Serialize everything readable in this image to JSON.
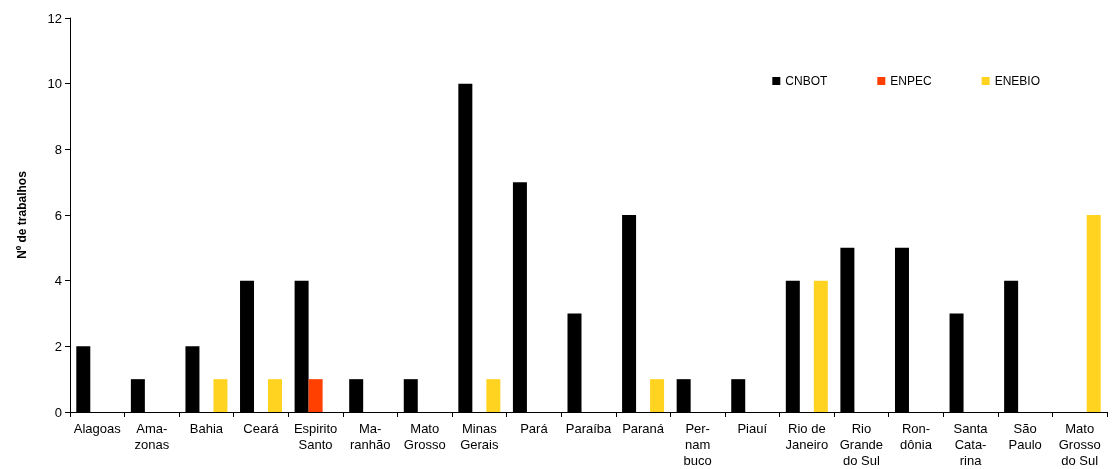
{
  "chart_data": {
    "type": "bar",
    "ylabel": "Nº de trabalhos",
    "categories": [
      "Alagoas",
      "Ama-\nzonas",
      "Bahia",
      "Ceará",
      "Espirito\nSanto",
      "Ma-\nranhão",
      "Mato\nGrosso",
      "Minas\nGerais",
      "Pará",
      "Paraíba",
      "Paraná",
      "Per-\nnam\nbuco",
      "Piauí",
      "Rio de\nJaneiro",
      "Rio\nGrande\ndo Sul",
      "Ron-\ndônia",
      "Santa\nCata-\nrina",
      "São\nPaulo",
      "Mato\nGrosso\ndo Sul"
    ],
    "series": [
      {
        "name": "CNBOT",
        "color": "#000000",
        "values": [
          2,
          1,
          2,
          4,
          4,
          1,
          1,
          10,
          7,
          3,
          6,
          1,
          1,
          4,
          5,
          5,
          3,
          4,
          null
        ]
      },
      {
        "name": "ENPEC",
        "color": "#ff4000",
        "values": [
          null,
          null,
          null,
          null,
          1,
          null,
          null,
          null,
          null,
          null,
          null,
          null,
          null,
          null,
          null,
          null,
          null,
          null,
          null
        ]
      },
      {
        "name": "ENEBIO",
        "color": "#ffd320",
        "values": [
          null,
          null,
          1,
          1,
          null,
          null,
          null,
          1,
          null,
          null,
          1,
          null,
          null,
          4,
          null,
          null,
          null,
          null,
          6
        ]
      }
    ],
    "ylim": [
      0,
      12
    ],
    "yticks": [
      0,
      2,
      4,
      6,
      8,
      10,
      12
    ],
    "grid": false,
    "legend": "top right"
  }
}
